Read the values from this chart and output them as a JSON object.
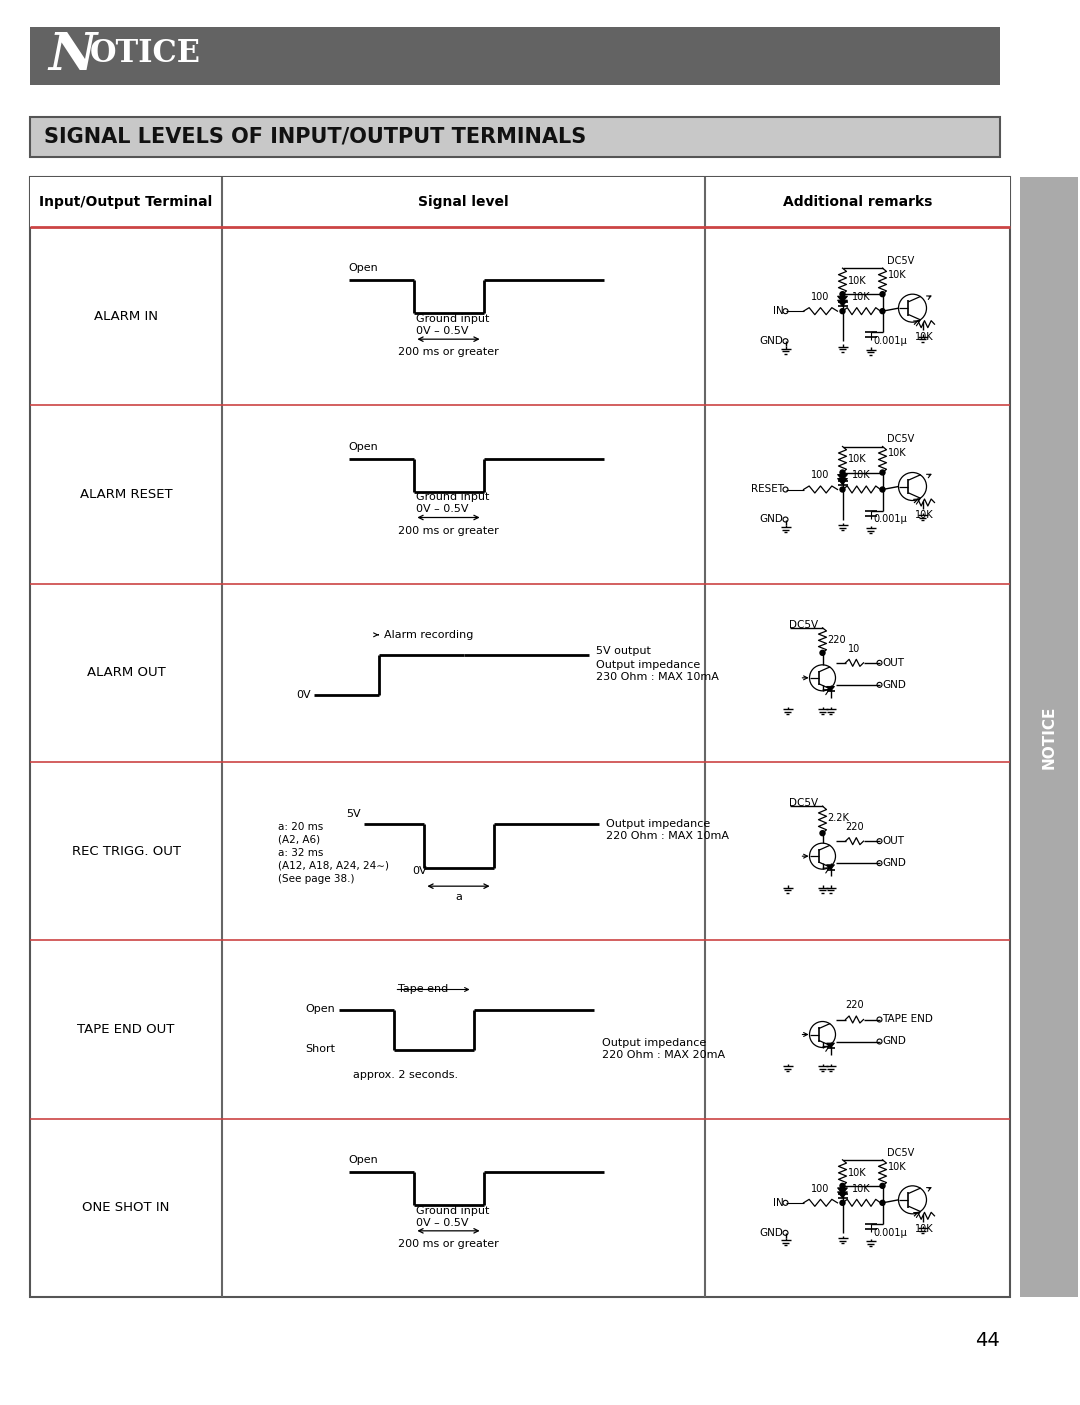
{
  "page_bg": "#ffffff",
  "notice_bg": "#636363",
  "section_title": "SIGNAL LEVELS OF INPUT/OUTPUT TERMINALS",
  "section_bg": "#c8c8c8",
  "table_border": "#666666",
  "header_row": [
    "Input/Output Terminal",
    "Signal level",
    "Additional remarks"
  ],
  "rows": [
    {
      "terminal": "ALARM IN"
    },
    {
      "terminal": "ALARM RESET"
    },
    {
      "terminal": "ALARM OUT"
    },
    {
      "terminal": "REC TRIGG. OUT"
    },
    {
      "terminal": "TAPE END OUT"
    },
    {
      "terminal": "ONE SHOT IN"
    }
  ],
  "page_number": "44",
  "notice_sidebar_bg": "#aaaaaa",
  "row_divider_color": "#cc4444",
  "header_divider_color": "#cc4444"
}
